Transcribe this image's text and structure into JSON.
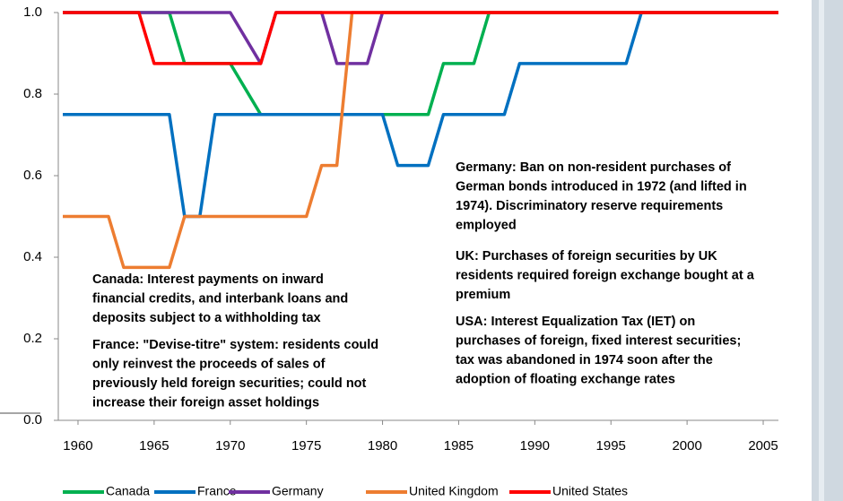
{
  "chart_data": {
    "type": "line",
    "x": [
      1959,
      1960,
      1961,
      1962,
      1963,
      1964,
      1965,
      1966,
      1967,
      1968,
      1969,
      1970,
      1971,
      1972,
      1973,
      1974,
      1975,
      1976,
      1977,
      1978,
      1979,
      1980,
      1981,
      1982,
      1983,
      1984,
      1985,
      1986,
      1987,
      1988,
      1989,
      1990,
      1991,
      1992,
      1993,
      1994,
      1995,
      1996,
      1997,
      1998,
      1999,
      2000,
      2001,
      2002,
      2003,
      2004,
      2005,
      2006
    ],
    "series": [
      {
        "name": "Canada",
        "color": "#00b050",
        "values": [
          1,
          1,
          1,
          1,
          1,
          1,
          1,
          1,
          0.875,
          0.875,
          0.875,
          0.875,
          0.8125,
          0.75,
          0.75,
          0.75,
          0.75,
          0.75,
          0.75,
          0.75,
          0.75,
          0.75,
          0.75,
          0.75,
          0.75,
          0.875,
          0.875,
          0.875,
          1,
          1,
          1,
          1,
          1,
          1,
          1,
          1,
          1,
          1,
          1,
          1,
          1,
          1,
          1,
          1,
          1,
          1,
          1,
          1
        ]
      },
      {
        "name": "France",
        "color": "#0070c0",
        "values": [
          0.75,
          0.75,
          0.75,
          0.75,
          0.75,
          0.75,
          0.75,
          0.75,
          0.5,
          0.5,
          0.75,
          0.75,
          0.75,
          0.75,
          0.75,
          0.75,
          0.75,
          0.75,
          0.75,
          0.75,
          0.75,
          0.75,
          0.625,
          0.625,
          0.625,
          0.75,
          0.75,
          0.75,
          0.75,
          0.75,
          0.875,
          0.875,
          0.875,
          0.875,
          0.875,
          0.875,
          0.875,
          0.875,
          1,
          1,
          1,
          1,
          1,
          1,
          1,
          1,
          1,
          1
        ]
      },
      {
        "name": "Germany",
        "color": "#7030a0",
        "values": [
          1,
          1,
          1,
          1,
          1,
          1,
          1,
          1,
          1,
          1,
          1,
          1,
          0.9375,
          0.875,
          1,
          1,
          1,
          1,
          0.875,
          0.875,
          0.875,
          1,
          1,
          1,
          1,
          1,
          1,
          1,
          1,
          1,
          1,
          1,
          1,
          1,
          1,
          1,
          1,
          1,
          1,
          1,
          1,
          1,
          1,
          1,
          1,
          1,
          1,
          1
        ]
      },
      {
        "name": "United Kingdom",
        "color": "#ed7d31",
        "values": [
          0.5,
          0.5,
          0.5,
          0.5,
          0.375,
          0.375,
          0.375,
          0.375,
          0.5,
          0.5,
          0.5,
          0.5,
          0.5,
          0.5,
          0.5,
          0.5,
          0.5,
          0.625,
          0.625,
          1,
          1,
          1,
          1,
          1,
          1,
          1,
          1,
          1,
          1,
          1,
          1,
          1,
          1,
          1,
          1,
          1,
          1,
          1,
          1,
          1,
          1,
          1,
          1,
          1,
          1,
          1,
          1,
          1
        ]
      },
      {
        "name": "United States",
        "color": "#ff0000",
        "values": [
          1,
          1,
          1,
          1,
          1,
          1,
          0.875,
          0.875,
          0.875,
          0.875,
          0.875,
          0.875,
          0.875,
          0.875,
          1,
          1,
          1,
          1,
          1,
          1,
          1,
          1,
          1,
          1,
          1,
          1,
          1,
          1,
          1,
          1,
          1,
          1,
          1,
          1,
          1,
          1,
          1,
          1,
          1,
          1,
          1,
          1,
          1,
          1,
          1,
          1,
          1,
          1
        ]
      }
    ],
    "xlim": [
      1959,
      2006
    ],
    "xticks": [
      1960,
      1965,
      1970,
      1975,
      1980,
      1985,
      1990,
      1995,
      2000,
      2005
    ],
    "ylim": [
      0,
      1
    ],
    "yticks": [
      {
        "value": 0,
        "label": "0.0"
      },
      0.2,
      0.4,
      0.6,
      0.8,
      {
        "value": 1,
        "label": "1.0"
      }
    ],
    "grid": false,
    "legend": "bottom",
    "annotations": [
      {
        "color": "#00b050",
        "lines": [
          "Canada: Interest payments on inward",
          "financial credits, and interbank loans and",
          "deposits subject to a withholding tax"
        ]
      },
      {
        "color": "#0070c0",
        "lines": [
          "France: \"Devise-titre\" system: residents could",
          "only reinvest the proceeds of sales of",
          "previously held foreign securities;  could not",
          "increase their foreign asset holdings"
        ]
      },
      {
        "color": "#7030a0",
        "lines": [
          "Germany: Ban on non-resident purchases of",
          "German bonds introduced in 1972 (and lifted in",
          "1974). Discriminatory reserve requirements",
          "employed"
        ]
      },
      {
        "color": "#ed7d31",
        "lines": [
          "UK: Purchases of foreign securities by UK",
          "residents required foreign exchange bought at a",
          "premium"
        ]
      },
      {
        "color": "#ff0000",
        "lines": [
          "USA: Interest Equalization Tax (IET) on",
          "purchases of foreign, fixed interest securities;",
          "tax was abandoned in 1974 soon after the",
          "adoption of floating exchange rates"
        ]
      }
    ]
  }
}
